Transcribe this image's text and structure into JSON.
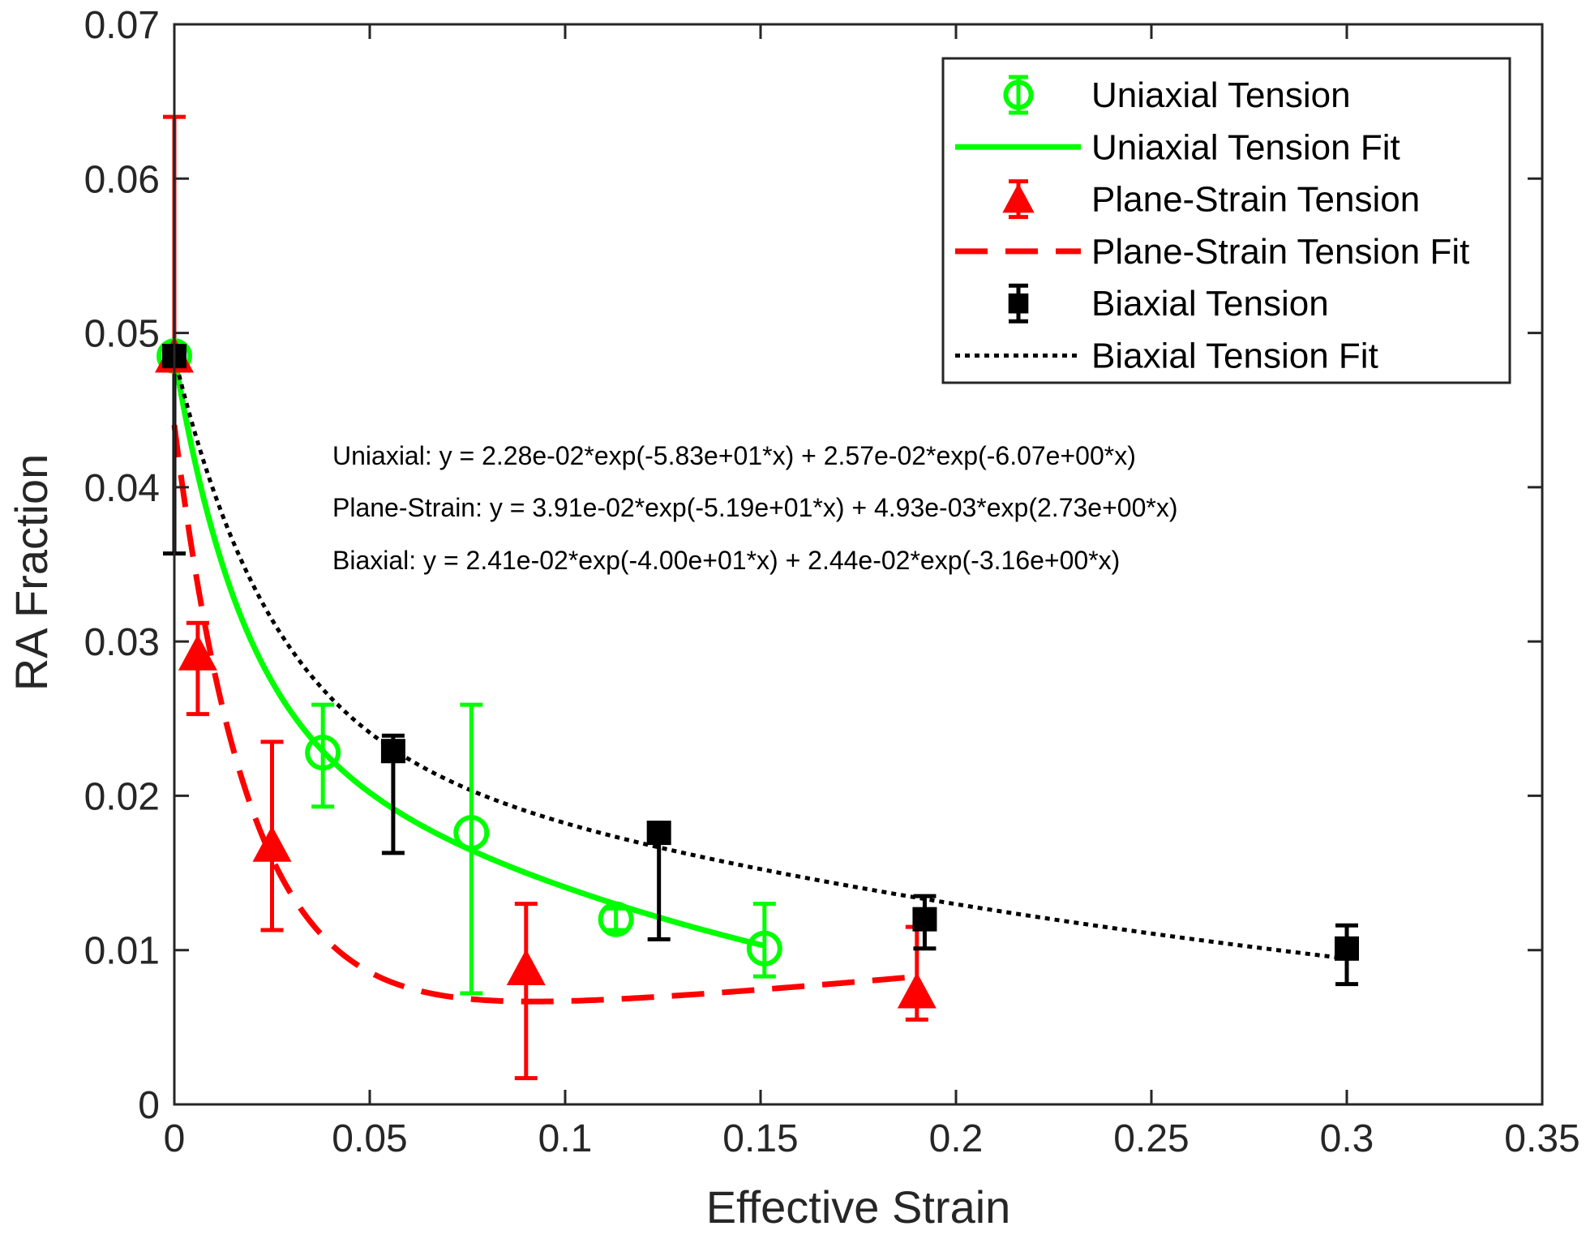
{
  "chart_data": {
    "type": "scatter",
    "xlabel": "Effective Strain",
    "ylabel": "RA Fraction",
    "xlim": [
      0,
      0.35
    ],
    "ylim": [
      0,
      0.07
    ],
    "xticks": [
      0,
      0.05,
      0.1,
      0.15,
      0.2,
      0.25,
      0.3,
      0.35
    ],
    "xtick_labels": [
      "0",
      "0.05",
      "0.1",
      "0.15",
      "0.2",
      "0.25",
      "0.3",
      "0.35"
    ],
    "yticks": [
      0,
      0.01,
      0.02,
      0.03,
      0.04,
      0.05,
      0.06,
      0.07
    ],
    "ytick_labels": [
      "0",
      "0.01",
      "0.02",
      "0.03",
      "0.04",
      "0.05",
      "0.06",
      "0.07"
    ],
    "grid": false,
    "legend_position": "top-right",
    "series": [
      {
        "name": "Uniaxial Tension",
        "kind": "errorbar",
        "marker": "circle",
        "color": "#00ff00",
        "x": [
          0,
          0.038,
          0.076,
          0.113,
          0.151
        ],
        "y": [
          0.0485,
          0.0228,
          0.0176,
          0.012,
          0.0101
        ],
        "err_low": [
          0.0485,
          0.0193,
          0.0072,
          0.0113,
          0.0083
        ],
        "err_high": [
          0.0485,
          0.0259,
          0.0259,
          0.0127,
          0.013
        ]
      },
      {
        "name": "Uniaxial Tension Fit",
        "kind": "fit",
        "style": "solid",
        "color": "#00ff00",
        "x_range": [
          0,
          0.151
        ],
        "coef": {
          "a": 0.0228,
          "b": -58.3,
          "c": 0.0257,
          "d": -6.07
        }
      },
      {
        "name": "Plane-Strain Tension",
        "kind": "errorbar",
        "marker": "triangle",
        "color": "#ff0000",
        "x": [
          0,
          0.006,
          0.025,
          0.09,
          0.19
        ],
        "y": [
          0.0485,
          0.0292,
          0.0168,
          0.0088,
          0.0073
        ],
        "err_low": [
          0.0485,
          0.0253,
          0.0113,
          0.0017,
          0.0055
        ],
        "err_high": [
          0.064,
          0.0312,
          0.0235,
          0.013,
          0.0115
        ]
      },
      {
        "name": "Plane-Strain Tension Fit",
        "kind": "fit",
        "style": "dashed",
        "color": "#ff0000",
        "x_range": [
          0,
          0.19
        ],
        "coef": {
          "a": 0.0391,
          "b": -51.9,
          "c": 0.00493,
          "d": 2.73
        }
      },
      {
        "name": "Biaxial Tension",
        "kind": "errorbar",
        "marker": "square",
        "color": "#000000",
        "x": [
          0,
          0.056,
          0.124,
          0.192,
          0.3
        ],
        "y": [
          0.0485,
          0.0229,
          0.0176,
          0.012,
          0.0101
        ],
        "err_low": [
          0.0357,
          0.0163,
          0.0107,
          0.0101,
          0.0078
        ],
        "err_high": [
          0.0485,
          0.0239,
          0.0176,
          0.0135,
          0.0116
        ]
      },
      {
        "name": "Biaxial Tension Fit",
        "kind": "fit",
        "style": "dotted",
        "color": "#000000",
        "x_range": [
          0,
          0.3
        ],
        "coef": {
          "a": 0.0241,
          "b": -40.0,
          "c": 0.0244,
          "d": -3.16
        }
      }
    ],
    "annotations": [
      "Uniaxial: y = 2.28e-02*exp(-5.83e+01*x) + 2.57e-02*exp(-6.07e+00*x)",
      "Plane-Strain: y = 3.91e-02*exp(-5.19e+01*x) + 4.93e-03*exp(2.73e+00*x)",
      "Biaxial: y = 2.41e-02*exp(-4.00e+01*x) + 2.44e-02*exp(-3.16e+00*x)"
    ]
  }
}
